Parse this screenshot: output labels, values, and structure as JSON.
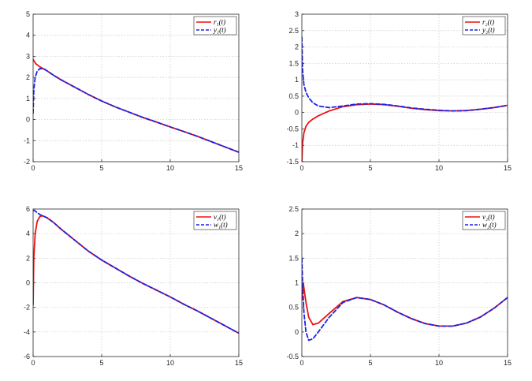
{
  "colors": {
    "solid": "#ee1111",
    "dashed": "#1b22e6",
    "grid": "#c8c8c8",
    "axis": "#262626"
  },
  "chart_data": [
    {
      "type": "line",
      "xlim": [
        0,
        15
      ],
      "ylim": [
        -2,
        5
      ],
      "xticks": [
        "0",
        "5",
        "10",
        "15"
      ],
      "yticks": [
        "-2",
        "-1",
        "0",
        "1",
        "2",
        "3",
        "4",
        "5"
      ],
      "grid": true,
      "legend": "top-right",
      "series": [
        {
          "name": "r₁(t)",
          "style": "solid",
          "x": [
            0,
            0.2,
            0.5,
            1,
            1.5,
            2,
            3,
            4,
            5,
            6,
            7,
            8,
            9,
            10,
            11,
            12,
            13,
            14,
            15
          ],
          "y": [
            2.85,
            2.65,
            2.5,
            2.32,
            2.1,
            1.9,
            1.55,
            1.2,
            0.88,
            0.6,
            0.35,
            0.1,
            -0.12,
            -0.35,
            -0.57,
            -0.8,
            -1.05,
            -1.3,
            -1.55
          ]
        },
        {
          "name": "y₁(t)",
          "style": "dashed",
          "x": [
            0,
            0.05,
            0.15,
            0.3,
            0.5,
            0.8,
            1,
            1.5,
            2,
            3,
            4,
            5,
            6,
            7,
            8,
            9,
            10,
            11,
            12,
            13,
            14,
            15
          ],
          "y": [
            0.3,
            1.4,
            2.0,
            2.3,
            2.42,
            2.4,
            2.32,
            2.1,
            1.9,
            1.55,
            1.2,
            0.88,
            0.6,
            0.35,
            0.1,
            -0.12,
            -0.35,
            -0.57,
            -0.8,
            -1.05,
            -1.3,
            -1.55
          ]
        }
      ]
    },
    {
      "type": "line",
      "xlim": [
        0,
        15
      ],
      "ylim": [
        -1.5,
        3
      ],
      "xticks": [
        "0",
        "5",
        "10",
        "15"
      ],
      "yticks": [
        "-1.5",
        "-1",
        "-0.5",
        "0",
        "0.5",
        "1",
        "1.5",
        "2",
        "2.5",
        "3"
      ],
      "grid": true,
      "legend": "top-right",
      "series": [
        {
          "name": "r₂(t)",
          "style": "solid",
          "x": [
            0,
            0.05,
            0.15,
            0.3,
            0.5,
            0.8,
            1.2,
            2,
            3,
            4,
            5,
            6,
            7,
            8,
            9,
            10,
            11,
            12,
            13,
            14,
            15
          ],
          "y": [
            -1.5,
            -0.95,
            -0.62,
            -0.42,
            -0.3,
            -0.2,
            -0.1,
            0.05,
            0.18,
            0.24,
            0.26,
            0.24,
            0.19,
            0.13,
            0.09,
            0.06,
            0.05,
            0.06,
            0.1,
            0.15,
            0.22
          ]
        },
        {
          "name": "y₂(t)",
          "style": "dashed",
          "x": [
            0,
            0.05,
            0.15,
            0.3,
            0.5,
            0.8,
            1.2,
            2,
            3,
            4,
            5,
            6,
            7,
            8,
            9,
            10,
            11,
            12,
            13,
            14,
            15
          ],
          "y": [
            2.3,
            1.3,
            0.85,
            0.62,
            0.45,
            0.3,
            0.2,
            0.15,
            0.2,
            0.26,
            0.27,
            0.25,
            0.2,
            0.14,
            0.1,
            0.07,
            0.05,
            0.06,
            0.1,
            0.15,
            0.22
          ]
        }
      ]
    },
    {
      "type": "line",
      "xlim": [
        0,
        15
      ],
      "ylim": [
        -6,
        6
      ],
      "xticks": [
        "0",
        "5",
        "10",
        "15"
      ],
      "yticks": [
        "-6",
        "-4",
        "-2",
        "0",
        "2",
        "4",
        "6"
      ],
      "grid": true,
      "legend": "top-right",
      "series": [
        {
          "name": "v₁(t)",
          "style": "solid",
          "x": [
            0,
            0.05,
            0.15,
            0.3,
            0.5,
            0.7,
            1,
            1.5,
            2,
            3,
            4,
            5,
            6,
            7,
            8,
            9,
            10,
            11,
            12,
            13,
            14,
            15
          ],
          "y": [
            -1.8,
            2.0,
            4.0,
            5.0,
            5.4,
            5.45,
            5.3,
            4.9,
            4.4,
            3.5,
            2.6,
            1.85,
            1.2,
            0.55,
            -0.05,
            -0.6,
            -1.15,
            -1.75,
            -2.3,
            -2.9,
            -3.5,
            -4.1
          ]
        },
        {
          "name": "w₁(t)",
          "style": "dashed",
          "x": [
            0,
            0.15,
            0.3,
            0.5,
            0.7,
            1,
            1.5,
            2,
            3,
            4,
            5,
            6,
            7,
            8,
            9,
            10,
            11,
            12,
            13,
            14,
            15
          ],
          "y": [
            5.9,
            5.85,
            5.7,
            5.55,
            5.45,
            5.3,
            4.9,
            4.4,
            3.5,
            2.6,
            1.85,
            1.2,
            0.55,
            -0.05,
            -0.6,
            -1.15,
            -1.75,
            -2.3,
            -2.9,
            -3.5,
            -4.1
          ]
        }
      ]
    },
    {
      "type": "line",
      "xlim": [
        0,
        15
      ],
      "ylim": [
        -0.5,
        2.5
      ],
      "xticks": [
        "0",
        "5",
        "10",
        "15"
      ],
      "yticks": [
        "-0.5",
        "0",
        "0.5",
        "1",
        "1.5",
        "2",
        "2.5"
      ],
      "grid": true,
      "legend": "top-right",
      "series": [
        {
          "name": "v₂(t)",
          "style": "solid",
          "x": [
            0,
            0.1,
            0.3,
            0.5,
            0.8,
            1.2,
            2,
            3,
            4,
            5,
            6,
            7,
            8,
            9,
            10,
            11,
            12,
            13,
            14,
            15
          ],
          "y": [
            0.65,
            1.0,
            0.6,
            0.3,
            0.15,
            0.18,
            0.38,
            0.62,
            0.7,
            0.66,
            0.55,
            0.4,
            0.27,
            0.17,
            0.12,
            0.12,
            0.18,
            0.3,
            0.48,
            0.7
          ]
        },
        {
          "name": "w₂(t)",
          "style": "dashed",
          "x": [
            0,
            0.05,
            0.15,
            0.3,
            0.5,
            0.8,
            1.2,
            2,
            3,
            4,
            5,
            6,
            7,
            8,
            9,
            10,
            11,
            12,
            13,
            14,
            15
          ],
          "y": [
            1.5,
            1.0,
            0.4,
            0.0,
            -0.17,
            -0.14,
            0.0,
            0.3,
            0.6,
            0.7,
            0.66,
            0.55,
            0.4,
            0.27,
            0.17,
            0.12,
            0.12,
            0.18,
            0.3,
            0.48,
            0.7
          ]
        }
      ]
    }
  ]
}
